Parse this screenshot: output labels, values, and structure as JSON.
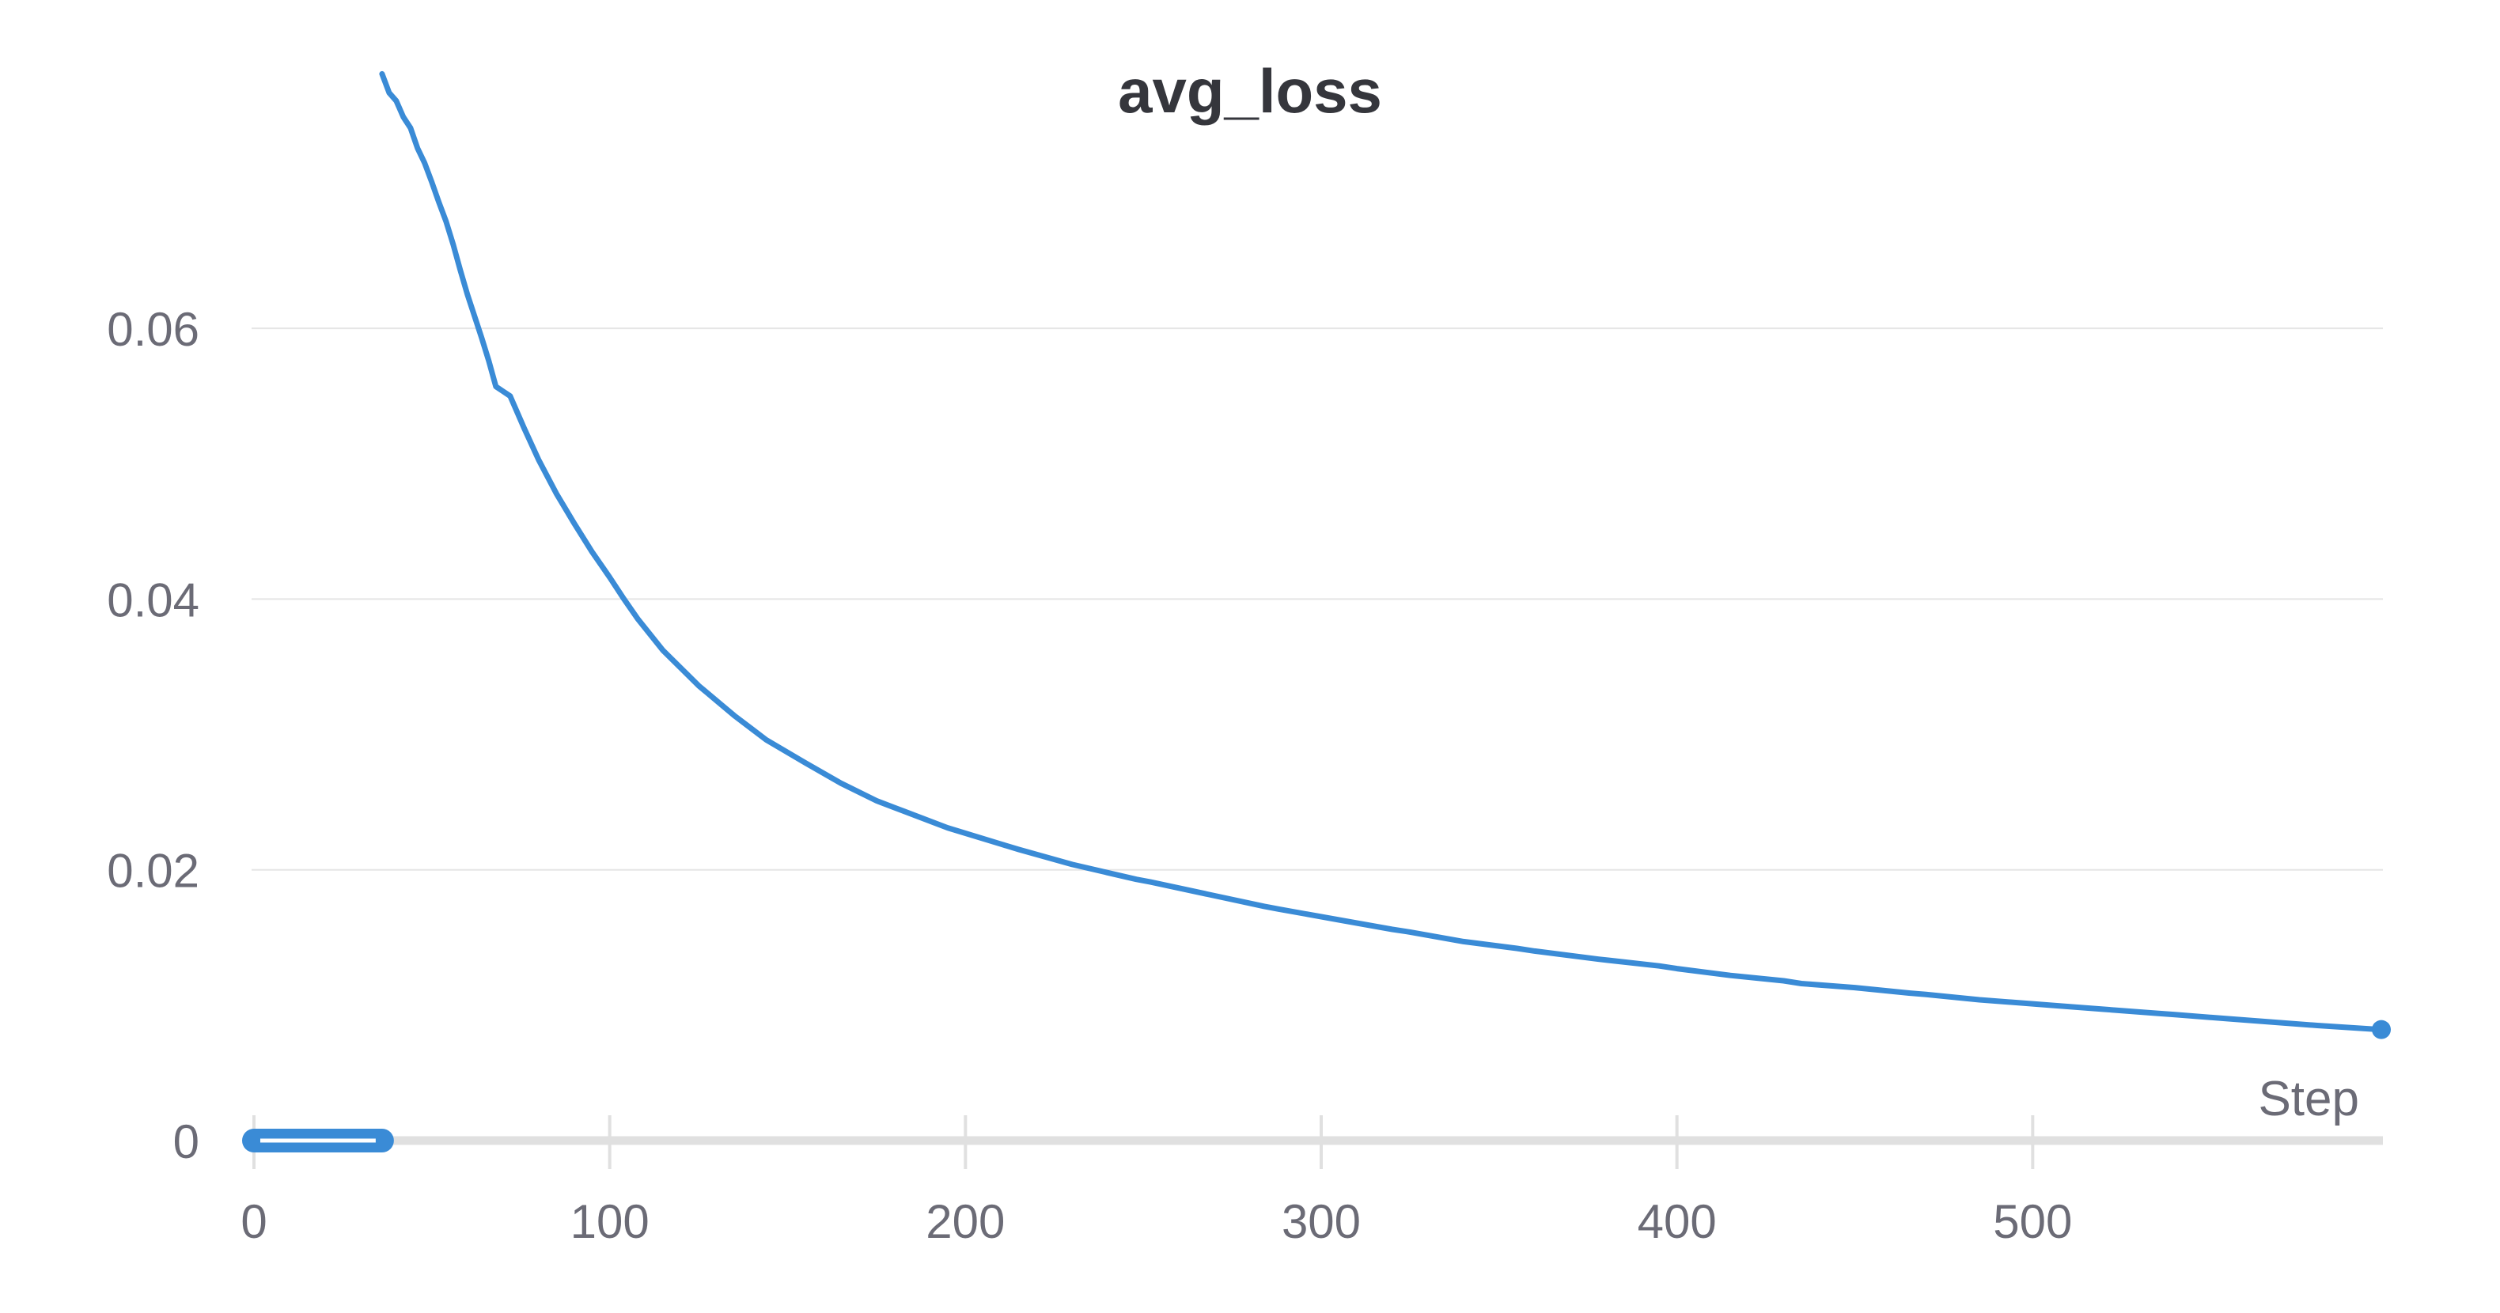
{
  "chart_data": {
    "type": "line",
    "title": "avg_loss",
    "xlabel": "Step",
    "ylabel": "",
    "xlim": [
      0,
      598
    ],
    "ylim": [
      0,
      0.0714
    ],
    "xticks": [
      0,
      100,
      200,
      300,
      400,
      500
    ],
    "xtick_labels": [
      "0",
      "100",
      "200",
      "300",
      "400",
      "500"
    ],
    "yticks": [
      0,
      0.02,
      0.04,
      0.06
    ],
    "ytick_labels": [
      "0",
      "0.02",
      "0.04",
      "0.06"
    ],
    "grid": true,
    "legend": "none",
    "colors": {
      "series": "#3a8bd6",
      "grid": "#e5e5e5",
      "axis": "#e0e0e0",
      "tick_text": "#6b6b76",
      "title": "#35363c"
    },
    "series": [
      {
        "x": [
          36,
          38,
          40,
          42,
          44,
          46,
          48,
          50,
          52,
          54,
          56,
          58,
          60,
          62,
          64,
          66,
          68,
          72,
          76,
          80,
          85,
          90,
          95,
          100,
          104,
          108,
          115,
          125,
          135,
          140,
          144,
          155,
          165,
          175,
          180,
          195,
          210,
          215,
          230,
          248,
          252,
          268,
          284,
          288,
          305,
          320,
          325,
          340,
          355,
          360,
          378,
          395,
          400,
          415,
          430,
          435,
          450,
          465,
          470,
          485,
          500,
          505,
          520,
          535,
          540,
          555,
          570,
          580,
          598
        ],
        "values": [
          0.0788,
          0.0774,
          0.0768,
          0.0756,
          0.0748,
          0.0733,
          0.0722,
          0.0708,
          0.0693,
          0.0679,
          0.0662,
          0.0643,
          0.0625,
          0.0609,
          0.0593,
          0.0576,
          0.0557,
          0.055,
          0.0526,
          0.0503,
          0.0478,
          0.0456,
          0.0435,
          0.0416,
          0.04,
          0.0385,
          0.0362,
          0.0336,
          0.0314,
          0.0304,
          0.0296,
          0.0279,
          0.0264,
          0.0251,
          0.0246,
          0.0231,
          0.0219,
          0.0215,
          0.0204,
          0.0193,
          0.0191,
          0.0182,
          0.0173,
          0.0171,
          0.0163,
          0.0156,
          0.0154,
          0.0147,
          0.0142,
          0.014,
          0.0134,
          0.0129,
          0.0127,
          0.0122,
          0.0118,
          0.0116,
          0.0113,
          0.0109,
          0.0108,
          0.0104,
          0.0101,
          0.01,
          0.0097,
          0.0094,
          0.0093,
          0.009,
          0.0087,
          0.0085,
          0.0082
        ]
      }
    ]
  }
}
